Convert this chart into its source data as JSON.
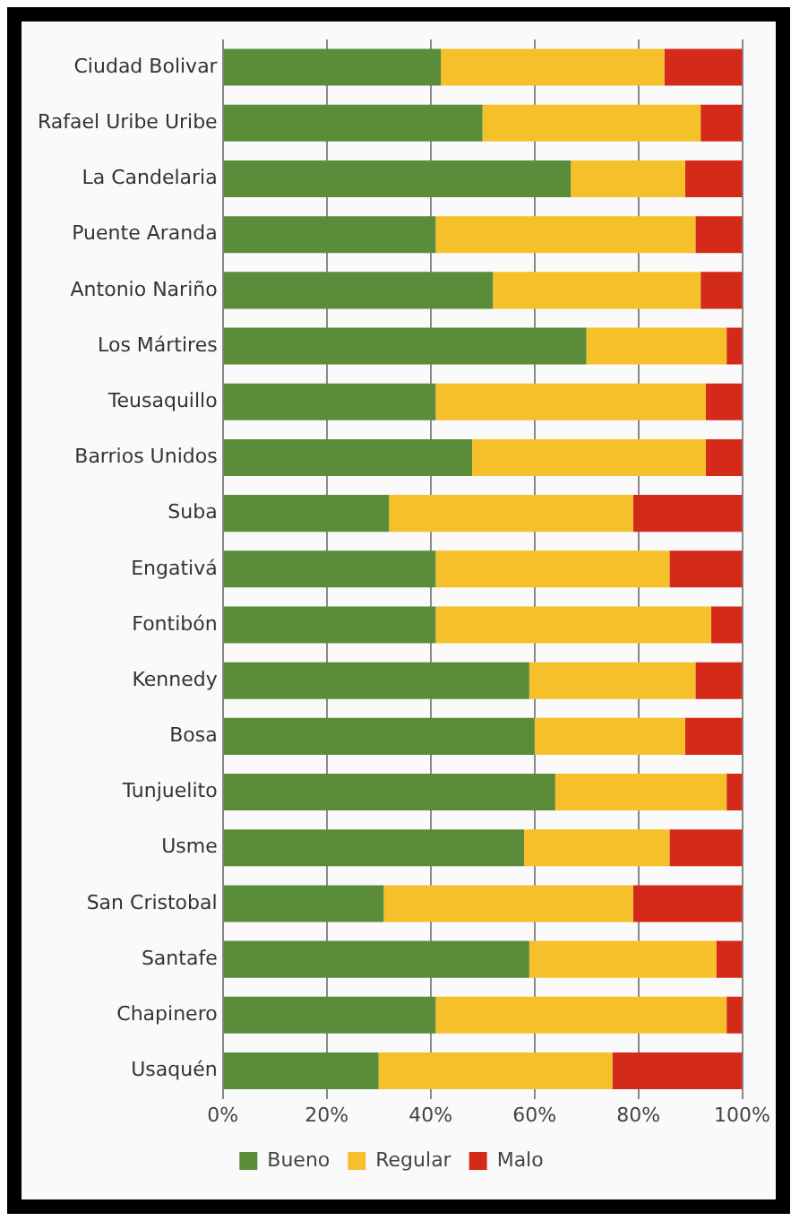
{
  "chart_data": {
    "type": "bar",
    "orientation": "horizontal",
    "stacked": true,
    "categories": [
      "Ciudad Bolivar",
      "Rafael Uribe Uribe",
      "La Candelaria",
      "Puente Aranda",
      "Antonio Nariño",
      "Los Mártires",
      "Teusaquillo",
      "Barrios Unidos",
      "Suba",
      "Engativá",
      "Fontibón",
      "Kennedy",
      "Bosa",
      "Tunjuelito",
      "Usme",
      "San Cristobal",
      "Santafe",
      "Chapinero",
      "Usaquén"
    ],
    "series": [
      {
        "name": "Bueno",
        "color": "#5b8c3a",
        "values": [
          42,
          50,
          67,
          41,
          52,
          70,
          41,
          48,
          32,
          41,
          41,
          59,
          60,
          64,
          58,
          31,
          59,
          41,
          30
        ]
      },
      {
        "name": "Regular",
        "color": "#f5c02a",
        "values": [
          43,
          42,
          22,
          50,
          40,
          27,
          52,
          45,
          47,
          45,
          53,
          32,
          29,
          33,
          28,
          48,
          36,
          56,
          45
        ]
      },
      {
        "name": "Malo",
        "color": "#d42a1a",
        "values": [
          15,
          8,
          11,
          9,
          8,
          3,
          7,
          7,
          21,
          14,
          6,
          9,
          11,
          3,
          14,
          21,
          5,
          3,
          25
        ]
      }
    ],
    "xlim": [
      0,
      100
    ],
    "xticks": [
      {
        "value": 0,
        "label": "0%"
      },
      {
        "value": 20,
        "label": "20%"
      },
      {
        "value": 40,
        "label": "40%"
      },
      {
        "value": 60,
        "label": "60%"
      },
      {
        "value": 80,
        "label": "80%"
      },
      {
        "value": 100,
        "label": "100%"
      }
    ],
    "grid": "x",
    "legend": "bottom"
  }
}
